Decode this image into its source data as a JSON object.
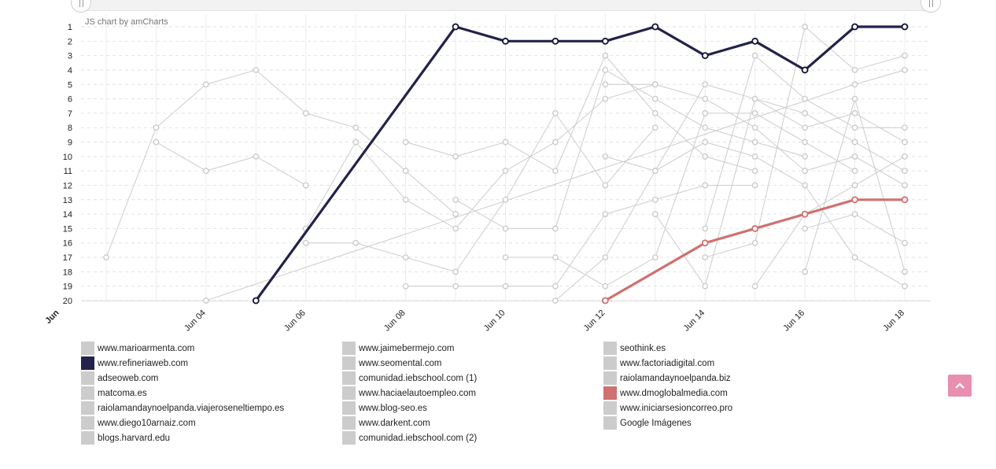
{
  "credit": "JS chart by amCharts",
  "colors": {
    "highlight": "#22224a",
    "accent": "#d07070",
    "muted": "#cccccc",
    "scroll_button": "#e88fb0"
  },
  "back_to_top_icon": "chevron-up-icon",
  "chart_data": {
    "type": "line",
    "yreversed": true,
    "ylim": [
      1,
      20
    ],
    "y_ticks": [
      1,
      2,
      3,
      4,
      5,
      6,
      7,
      8,
      9,
      10,
      11,
      12,
      13,
      14,
      15,
      16,
      17,
      18,
      19,
      20
    ],
    "x_ticks": [
      {
        "x": "2019-06-01",
        "label": "Jun"
      },
      {
        "x": "2019-06-04",
        "label": "Jun 04"
      },
      {
        "x": "2019-06-06",
        "label": "Jun 06"
      },
      {
        "x": "2019-06-08",
        "label": "Jun 08"
      },
      {
        "x": "2019-06-10",
        "label": "Jun 10"
      },
      {
        "x": "2019-06-12",
        "label": "Jun 12"
      },
      {
        "x": "2019-06-14",
        "label": "Jun 14"
      },
      {
        "x": "2019-06-16",
        "label": "Jun 16"
      },
      {
        "x": "2019-06-18",
        "label": "Jun 18"
      }
    ],
    "x_range": [
      "2019-06-01",
      "2019-06-18"
    ],
    "legend": "bottom",
    "series": [
      {
        "name": "www.marioarmenta.com",
        "color": "#cccccc",
        "values": [
          [
            "2019-06-02",
            17
          ],
          [
            "2019-06-03",
            8
          ],
          [
            "2019-06-04",
            5
          ],
          [
            "2019-06-05",
            4
          ],
          [
            "2019-06-06",
            7
          ],
          [
            "2019-06-07",
            8
          ],
          [
            "2019-06-08",
            11
          ],
          [
            "2019-06-09",
            14
          ]
        ]
      },
      {
        "name": "www.refineriaweb.com",
        "color": "#22224a",
        "highlight": true,
        "values": [
          [
            "2019-06-05",
            20
          ],
          [
            "2019-06-09",
            1
          ],
          [
            "2019-06-10",
            2
          ],
          [
            "2019-06-11",
            2
          ],
          [
            "2019-06-12",
            2
          ],
          [
            "2019-06-13",
            1
          ],
          [
            "2019-06-14",
            3
          ],
          [
            "2019-06-15",
            2
          ],
          [
            "2019-06-16",
            4
          ],
          [
            "2019-06-17",
            1
          ],
          [
            "2019-06-18",
            1
          ]
        ]
      },
      {
        "name": "adseoweb.com",
        "color": "#cccccc",
        "values": [
          [
            "2019-06-03",
            9
          ],
          [
            "2019-06-04",
            11
          ],
          [
            "2019-06-05",
            10
          ],
          [
            "2019-06-06",
            12
          ]
        ]
      },
      {
        "name": "matcoma.es",
        "color": "#cccccc",
        "values": [
          [
            "2019-06-04",
            20
          ],
          [
            "2019-06-17",
            5
          ],
          [
            "2019-06-18",
            4
          ]
        ]
      },
      {
        "name": "raiolamandaynoelpanda.viajeroseneltiempo.es",
        "color": "#cccccc",
        "values": [
          [
            "2019-06-06",
            15
          ],
          [
            "2019-06-07",
            9
          ],
          [
            "2019-06-08",
            13
          ],
          [
            "2019-06-09",
            15
          ],
          [
            "2019-06-10",
            11
          ],
          [
            "2019-06-11",
            9
          ],
          [
            "2019-06-12",
            6
          ],
          [
            "2019-06-13",
            5
          ]
        ]
      },
      {
        "name": "www.diego10arnaiz.com",
        "color": "#cccccc",
        "values": [
          [
            "2019-06-06",
            16
          ],
          [
            "2019-06-07",
            16
          ],
          [
            "2019-06-08",
            17
          ],
          [
            "2019-06-09",
            18
          ],
          [
            "2019-06-10",
            13
          ],
          [
            "2019-06-11",
            7
          ],
          [
            "2019-06-12",
            12
          ],
          [
            "2019-06-13",
            8
          ]
        ]
      },
      {
        "name": "blogs.harvard.edu",
        "color": "#cccccc",
        "values": [
          [
            "2019-06-08",
            19
          ],
          [
            "2019-06-09",
            19
          ],
          [
            "2019-06-10",
            19
          ],
          [
            "2019-06-11",
            19
          ],
          [
            "2019-06-12",
            14
          ],
          [
            "2019-06-13",
            13
          ],
          [
            "2019-06-14",
            12
          ],
          [
            "2019-06-15",
            12
          ]
        ]
      },
      {
        "name": "www.jaimebermejo.com",
        "color": "#cccccc",
        "values": [
          [
            "2019-06-08",
            9
          ],
          [
            "2019-06-09",
            10
          ],
          [
            "2019-06-10",
            9
          ],
          [
            "2019-06-11",
            11
          ],
          [
            "2019-06-12",
            3
          ],
          [
            "2019-06-13",
            7
          ],
          [
            "2019-06-14",
            10
          ],
          [
            "2019-06-15",
            11
          ]
        ]
      },
      {
        "name": "www.seomental.com",
        "color": "#cccccc",
        "values": [
          [
            "2019-06-09",
            13
          ],
          [
            "2019-06-10",
            15
          ],
          [
            "2019-06-11",
            15
          ],
          [
            "2019-06-12",
            4
          ],
          [
            "2019-06-13",
            6
          ],
          [
            "2019-06-14",
            8
          ],
          [
            "2019-06-15",
            9
          ],
          [
            "2019-06-16",
            10
          ]
        ]
      },
      {
        "name": "comunidad.iebschool.com (1)",
        "color": "#cccccc",
        "values": [
          [
            "2019-06-10",
            17
          ],
          [
            "2019-06-11",
            17
          ],
          [
            "2019-06-12",
            19
          ],
          [
            "2019-06-13",
            17
          ],
          [
            "2019-06-14",
            7
          ],
          [
            "2019-06-15",
            7
          ],
          [
            "2019-06-16",
            9
          ],
          [
            "2019-06-17",
            11
          ]
        ]
      },
      {
        "name": "www.haciaelautoempleo.com",
        "color": "#cccccc",
        "values": [
          [
            "2019-06-11",
            20
          ],
          [
            "2019-06-12",
            17
          ],
          [
            "2019-06-13",
            11
          ],
          [
            "2019-06-14",
            9
          ],
          [
            "2019-06-15",
            10
          ],
          [
            "2019-06-16",
            12
          ],
          [
            "2019-06-17",
            17
          ],
          [
            "2019-06-18",
            19
          ]
        ]
      },
      {
        "name": "www.blog-seo.es",
        "color": "#cccccc",
        "values": [
          [
            "2019-06-12",
            5
          ],
          [
            "2019-06-13",
            5
          ],
          [
            "2019-06-14",
            6
          ],
          [
            "2019-06-15",
            8
          ],
          [
            "2019-06-16",
            11
          ],
          [
            "2019-06-17",
            10
          ],
          [
            "2019-06-18",
            12
          ]
        ]
      },
      {
        "name": "www.darkent.com",
        "color": "#cccccc",
        "values": [
          [
            "2019-06-12",
            10
          ],
          [
            "2019-06-13",
            11
          ],
          [
            "2019-06-14",
            5
          ],
          [
            "2019-06-15",
            6
          ],
          [
            "2019-06-16",
            7
          ],
          [
            "2019-06-17",
            9
          ],
          [
            "2019-06-18",
            11
          ]
        ]
      },
      {
        "name": "comunidad.iebschool.com (2)",
        "color": "#cccccc",
        "values": [
          [
            "2019-06-13",
            14
          ],
          [
            "2019-06-14",
            19
          ],
          [
            "2019-06-15",
            6
          ],
          [
            "2019-06-16",
            8
          ],
          [
            "2019-06-17",
            7
          ],
          [
            "2019-06-18",
            9
          ]
        ]
      },
      {
        "name": "seothink.es",
        "color": "#cccccc",
        "values": [
          [
            "2019-06-14",
            17
          ],
          [
            "2019-06-15",
            16
          ],
          [
            "2019-06-16",
            1
          ],
          [
            "2019-06-17",
            4
          ],
          [
            "2019-06-18",
            3
          ]
        ]
      },
      {
        "name": "www.factoriadigital.com",
        "color": "#cccccc",
        "values": [
          [
            "2019-06-14",
            15
          ],
          [
            "2019-06-15",
            3
          ],
          [
            "2019-06-16",
            6
          ],
          [
            "2019-06-17",
            8
          ],
          [
            "2019-06-18",
            8
          ]
        ]
      },
      {
        "name": "raiolamandaynoelpanda.biz",
        "color": "#cccccc",
        "values": [
          [
            "2019-06-15",
            19
          ],
          [
            "2019-06-16",
            14
          ],
          [
            "2019-06-17",
            12
          ],
          [
            "2019-06-18",
            10
          ]
        ]
      },
      {
        "name": "www.dmoglobalmedia.com",
        "color": "#d07070",
        "highlight": true,
        "values": [
          [
            "2019-06-12",
            20
          ],
          [
            "2019-06-14",
            16
          ],
          [
            "2019-06-15",
            15
          ],
          [
            "2019-06-16",
            14
          ],
          [
            "2019-06-17",
            13
          ],
          [
            "2019-06-18",
            13
          ]
        ]
      },
      {
        "name": "www.iniciarsesioncorreo.pro",
        "color": "#cccccc",
        "values": [
          [
            "2019-06-16",
            15
          ],
          [
            "2019-06-17",
            14
          ],
          [
            "2019-06-18",
            16
          ]
        ]
      },
      {
        "name": "Google Imágenes",
        "color": "#cccccc",
        "values": [
          [
            "2019-06-16",
            18
          ],
          [
            "2019-06-17",
            6
          ],
          [
            "2019-06-18",
            18
          ]
        ]
      }
    ]
  }
}
